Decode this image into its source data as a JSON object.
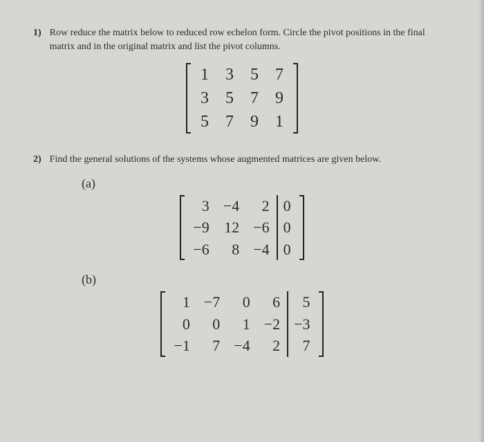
{
  "background_color": "#d8d6d2",
  "text_color": "#2a2a2a",
  "q1": {
    "number": "1)",
    "prompt": "Row reduce the matrix below to reduced row echelon form. Circle the pivot positions in the final matrix and in the original matrix and list the pivot columns.",
    "matrix": {
      "rows": [
        [
          "1",
          "3",
          "5",
          "7"
        ],
        [
          "3",
          "5",
          "7",
          "9"
        ],
        [
          "5",
          "7",
          "9",
          "1"
        ]
      ],
      "augmented_after_col": null
    }
  },
  "q2": {
    "number": "2)",
    "prompt": "Find the general solutions of the systems whose augmented matrices are given below.",
    "parts": {
      "a": {
        "label": "(a)",
        "matrix": {
          "rows": [
            [
              "3",
              "−4",
              "2",
              "0"
            ],
            [
              "−9",
              "12",
              "−6",
              "0"
            ],
            [
              "−6",
              "8",
              "−4",
              "0"
            ]
          ],
          "augmented_after_col": 3
        }
      },
      "b": {
        "label": "(b)",
        "matrix": {
          "rows": [
            [
              "1",
              "−7",
              "0",
              "6",
              "5"
            ],
            [
              "0",
              "0",
              "1",
              "−2",
              "−3"
            ],
            [
              "−1",
              "7",
              "−4",
              "2",
              "7"
            ]
          ],
          "augmented_after_col": 4
        }
      }
    }
  }
}
